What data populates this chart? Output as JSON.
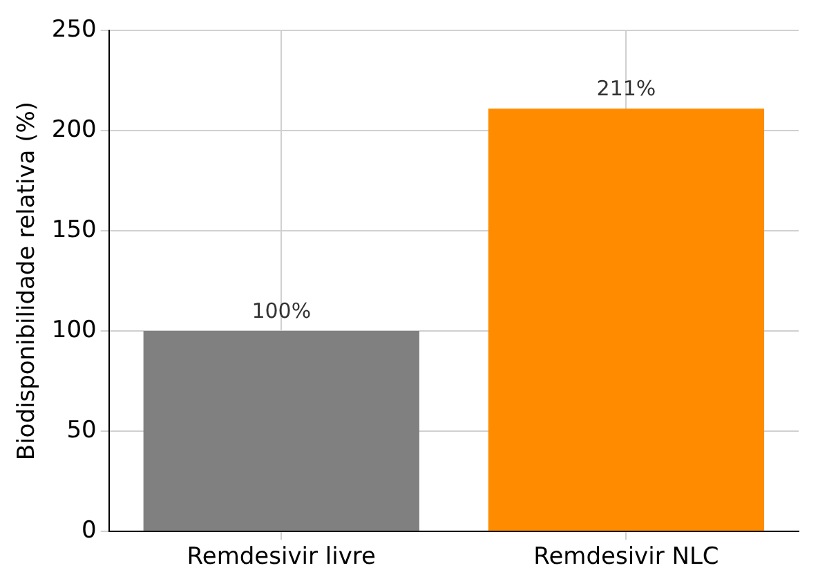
{
  "chart_data": {
    "type": "bar",
    "ylabel": "Biodisponibilidade relativa (%)",
    "categories": [
      "Remdesivir livre",
      "Remdesivir NLC"
    ],
    "values": [
      100,
      211
    ],
    "value_labels": [
      "100%",
      "211%"
    ],
    "colors": [
      "#808080",
      "#ff8c00"
    ],
    "ylim": [
      0,
      250
    ],
    "yticks": [
      0,
      50,
      100,
      150,
      200,
      250
    ],
    "grid": true,
    "legend": false
  }
}
